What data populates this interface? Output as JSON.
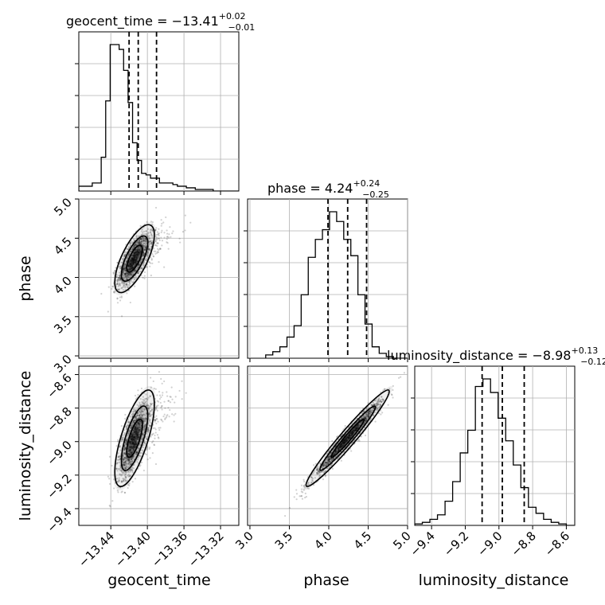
{
  "chart_data": {
    "type": "corner",
    "parameters": [
      {
        "key": "geocent_time",
        "label": "geocent_time",
        "title_main": "geocent_time = −13.41",
        "title_sup": "+0.02",
        "title_sub": "−0.01",
        "median": -13.41,
        "q_low": -13.42,
        "q_high": -13.39,
        "range": [
          -13.475,
          -13.3
        ],
        "ticks": [
          -13.44,
          -13.4,
          -13.36,
          -13.32
        ],
        "tick_labels": [
          "−13.44",
          "−13.40",
          "−13.36",
          "−13.32"
        ],
        "hist_edges_start": -13.475,
        "hist_bin_width": 0.0049,
        "hist_counts": [
          0.3,
          0.3,
          0.3,
          0.5,
          0.5,
          2.1,
          5.6,
          9.1,
          9.1,
          8.8,
          7.5,
          5.5,
          3.0,
          1.9,
          1.1,
          1.0,
          0.8,
          0.8,
          0.5,
          0.5,
          0.5,
          0.4,
          0.3,
          0.3,
          0.2,
          0.2,
          0.1,
          0.1,
          0.1,
          0.1,
          0.0,
          0.0,
          0.0,
          0.0,
          0.0,
          0.0
        ]
      },
      {
        "key": "phase",
        "label": "phase",
        "title_main": "phase = 4.24",
        "title_sup": "+0.24",
        "title_sub": "−0.25",
        "median": 4.24,
        "q_low": 3.99,
        "q_high": 4.48,
        "range": [
          2.97,
          5.0
        ],
        "ticks": [
          3.0,
          3.5,
          4.0,
          4.5,
          5.0
        ],
        "tick_labels": [
          "3.0",
          "3.5",
          "4.0",
          "4.5",
          "5.0"
        ],
        "hist_edges_start": 3.2,
        "hist_bin_width": 0.09,
        "hist_counts": [
          0.2,
          0.4,
          0.7,
          1.3,
          2.0,
          3.9,
          6.2,
          7.3,
          7.9,
          9.0,
          8.4,
          7.3,
          6.3,
          3.9,
          2.1,
          0.7,
          0.3,
          0.1,
          0.0,
          0.0
        ]
      },
      {
        "key": "luminosity_distance",
        "label": "luminosity_distance",
        "title_main": "luminosity_distance = −8.98",
        "title_sup": "+0.13",
        "title_sub": "−0.12",
        "median": -8.98,
        "q_low": -9.1,
        "q_high": -8.85,
        "range": [
          -9.5,
          -8.55
        ],
        "ticks": [
          -9.4,
          -9.2,
          -9.0,
          -8.8,
          -8.6
        ],
        "tick_labels": [
          "−9.4",
          "−9.2",
          "−9.0",
          "−8.8",
          "−8.6"
        ],
        "hist_edges_start": -9.5,
        "hist_bin_width": 0.045,
        "hist_counts": [
          0.1,
          0.2,
          0.4,
          0.7,
          1.6,
          2.9,
          4.8,
          6.3,
          9.2,
          9.7,
          8.8,
          7.1,
          5.6,
          4.0,
          2.5,
          1.2,
          0.8,
          0.4,
          0.2,
          0.1,
          0.0
        ]
      }
    ],
    "pairs": [
      {
        "x": "geocent_time",
        "y": "phase",
        "center": [
          -13.414,
          4.24
        ],
        "sd": [
          0.009,
          0.18
        ],
        "rho": 0.7
      },
      {
        "x": "geocent_time",
        "y": "luminosity_distance",
        "center": [
          -13.414,
          -8.98
        ],
        "sd": [
          0.009,
          0.12
        ],
        "rho": 0.7
      },
      {
        "x": "phase",
        "y": "luminosity_distance",
        "center": [
          4.24,
          -8.98
        ],
        "sd": [
          0.22,
          0.12
        ],
        "rho": 0.97
      }
    ],
    "x_labels": [
      "geocent_time",
      "phase",
      "luminosity_distance"
    ],
    "y_labels": [
      "",
      "phase",
      "luminosity_distance"
    ],
    "grid": true
  }
}
